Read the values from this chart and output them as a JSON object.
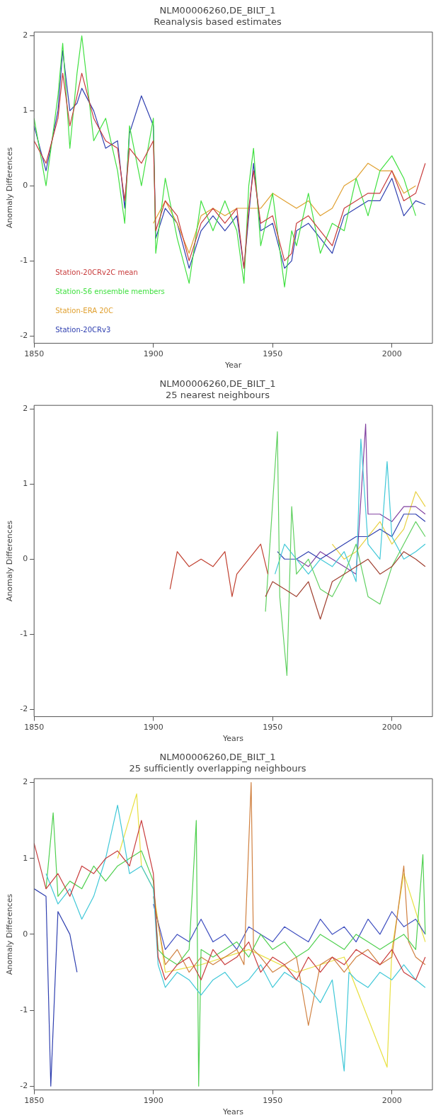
{
  "chart_data": [
    {
      "type": "line",
      "title": "NLM00006260,DE_BILT_1",
      "subtitle": "Reanalysis based estimates",
      "xlabel": "Year",
      "ylabel": "Anomaly Differences",
      "xlim": [
        1850,
        2017
      ],
      "xticks": [
        1850,
        1900,
        1950,
        2000
      ],
      "ylim": [
        -2.1,
        2.05
      ],
      "yticks": [
        -2,
        -1,
        0,
        1,
        2
      ],
      "legend": "bottom left",
      "series": [
        {
          "name": "Station-20CRv2C mean",
          "color": "#c83c3c",
          "x": [
            1850,
            1855,
            1860,
            1862,
            1865,
            1868,
            1870,
            1875,
            1880,
            1885,
            1888,
            1890,
            1895,
            1900,
            1901,
            1905,
            1910,
            1915,
            1920,
            1925,
            1930,
            1935,
            1938,
            1940,
            1942,
            1945,
            1950,
            1955,
            1958,
            1960,
            1965,
            1970,
            1975,
            1980,
            1985,
            1990,
            1995,
            2000,
            2005,
            2010,
            2014
          ],
          "values": [
            0.6,
            0.3,
            0.9,
            1.5,
            0.8,
            1.2,
            1.5,
            0.9,
            0.6,
            0.5,
            -0.2,
            0.5,
            0.3,
            0.6,
            -0.6,
            -0.2,
            -0.4,
            -1.0,
            -0.5,
            -0.3,
            -0.5,
            -0.3,
            -1.1,
            -0.3,
            0.2,
            -0.5,
            -0.4,
            -1.0,
            -0.9,
            -0.5,
            -0.4,
            -0.6,
            -0.8,
            -0.3,
            -0.2,
            -0.1,
            -0.1,
            0.2,
            -0.2,
            -0.1,
            0.3
          ]
        },
        {
          "name": "Station-56 ensemble members",
          "color": "#40e040",
          "x": [
            1850,
            1855,
            1860,
            1862,
            1865,
            1868,
            1870,
            1875,
            1880,
            1885,
            1888,
            1890,
            1895,
            1900,
            1901,
            1905,
            1910,
            1915,
            1920,
            1925,
            1930,
            1935,
            1938,
            1940,
            1942,
            1945,
            1950,
            1955,
            1958,
            1960,
            1965,
            1970,
            1975,
            1980,
            1985,
            1990,
            1995,
            2000,
            2005,
            2010
          ],
          "values": [
            0.9,
            0.0,
            1.2,
            1.9,
            0.5,
            1.5,
            2.0,
            0.6,
            0.9,
            0.2,
            -0.5,
            0.8,
            0.0,
            0.9,
            -0.9,
            0.1,
            -0.7,
            -1.3,
            -0.2,
            -0.6,
            -0.2,
            -0.6,
            -1.3,
            0.0,
            0.5,
            -0.8,
            -0.1,
            -1.35,
            -0.6,
            -0.8,
            -0.1,
            -0.9,
            -0.5,
            -0.6,
            0.1,
            -0.4,
            0.2,
            0.4,
            0.1,
            -0.4
          ]
        },
        {
          "name": "Station-ERA 20C",
          "color": "#e0a030",
          "x": [
            1900,
            1905,
            1910,
            1915,
            1920,
            1925,
            1930,
            1935,
            1940,
            1945,
            1950,
            1955,
            1960,
            1965,
            1970,
            1975,
            1980,
            1985,
            1990,
            1995,
            2000,
            2005,
            2010
          ],
          "values": [
            -0.5,
            -0.2,
            -0.5,
            -0.9,
            -0.4,
            -0.3,
            -0.4,
            -0.3,
            -0.3,
            -0.3,
            -0.1,
            -0.2,
            -0.3,
            -0.2,
            -0.4,
            -0.3,
            0.0,
            0.1,
            0.3,
            0.2,
            0.2,
            -0.1,
            0.0
          ]
        },
        {
          "name": "Station-20CRv3",
          "color": "#3040b0",
          "x": [
            1850,
            1855,
            1860,
            1862,
            1865,
            1868,
            1870,
            1875,
            1880,
            1885,
            1888,
            1890,
            1895,
            1900,
            1901,
            1905,
            1910,
            1915,
            1920,
            1925,
            1930,
            1935,
            1938,
            1940,
            1942,
            1945,
            1950,
            1955,
            1958,
            1960,
            1965,
            1970,
            1975,
            1980,
            1985,
            1990,
            1995,
            2000,
            2005,
            2010,
            2014
          ],
          "values": [
            0.8,
            0.2,
            1.0,
            1.8,
            1.0,
            1.1,
            1.3,
            1.0,
            0.5,
            0.6,
            -0.3,
            0.7,
            1.2,
            0.8,
            -0.7,
            -0.3,
            -0.5,
            -1.1,
            -0.6,
            -0.4,
            -0.6,
            -0.4,
            -1.1,
            -0.4,
            0.3,
            -0.6,
            -0.5,
            -1.1,
            -1.0,
            -0.6,
            -0.5,
            -0.7,
            -0.9,
            -0.4,
            -0.3,
            -0.2,
            -0.2,
            0.1,
            -0.4,
            -0.2,
            -0.25
          ]
        }
      ]
    },
    {
      "type": "line",
      "title": "NLM00006260,DE_BILT_1",
      "subtitle": "25 nearest neighbours",
      "xlabel": "Years",
      "ylabel": "Anomaly Differences",
      "xlim": [
        1850,
        2017
      ],
      "xticks": [
        1850,
        1900,
        1950,
        2000
      ],
      "ylim": [
        -2.1,
        2.05
      ],
      "yticks": [
        -2,
        -1,
        0,
        1,
        2
      ],
      "series": [
        {
          "color": "#c04030",
          "x": [
            1907,
            1910,
            1915,
            1920,
            1925,
            1930,
            1933,
            1935,
            1940,
            1945,
            1948
          ],
          "values": [
            -0.4,
            0.1,
            -0.1,
            0.0,
            -0.1,
            0.1,
            -0.5,
            -0.2,
            0.0,
            0.2,
            -0.2
          ]
        },
        {
          "color": "#a04030",
          "x": [
            1947,
            1950,
            1955,
            1960,
            1965,
            1970,
            1975,
            1980,
            1985,
            1990,
            1995,
            2000,
            2005,
            2010,
            2014
          ],
          "values": [
            -0.5,
            -0.3,
            -0.4,
            -0.5,
            -0.3,
            -0.8,
            -0.3,
            -0.2,
            -0.1,
            0.0,
            -0.2,
            -0.1,
            0.1,
            0.0,
            -0.1
          ]
        },
        {
          "color": "#60d060",
          "x": [
            1947,
            1952,
            1953,
            1956,
            1958,
            1960,
            1965,
            1970,
            1975,
            1980,
            1985,
            1990,
            1995,
            2000,
            2005,
            2010,
            2014
          ],
          "values": [
            -0.7,
            1.7,
            -0.5,
            -1.55,
            0.7,
            -0.2,
            0.0,
            -0.4,
            -0.5,
            -0.2,
            0.2,
            -0.5,
            -0.6,
            -0.1,
            0.2,
            0.5,
            0.3
          ]
        },
        {
          "color": "#40c8d8",
          "x": [
            1951,
            1955,
            1960,
            1965,
            1970,
            1975,
            1980,
            1985,
            1987,
            1990,
            1995,
            1998,
            2000,
            2005,
            2010,
            2014
          ],
          "values": [
            -0.2,
            0.2,
            0.0,
            -0.2,
            0.0,
            -0.1,
            0.1,
            -0.3,
            1.6,
            0.2,
            0.0,
            1.3,
            0.3,
            0.0,
            0.1,
            0.2
          ]
        },
        {
          "color": "#3040b0",
          "x": [
            1952,
            1955,
            1960,
            1965,
            1970,
            1975,
            1980,
            1985,
            1990,
            1995,
            2000,
            2005,
            2010,
            2014
          ],
          "values": [
            0.1,
            0.0,
            0.0,
            0.1,
            0.0,
            0.1,
            0.2,
            0.3,
            0.3,
            0.4,
            0.3,
            0.6,
            0.6,
            0.5
          ]
        },
        {
          "color": "#8040a0",
          "x": [
            1960,
            1965,
            1970,
            1975,
            1980,
            1985,
            1989,
            1990,
            1995,
            2000,
            2005,
            2010,
            2014
          ],
          "values": [
            0.0,
            -0.1,
            0.1,
            0.0,
            -0.1,
            -0.2,
            1.8,
            0.6,
            0.6,
            0.5,
            0.7,
            0.7,
            0.6
          ]
        },
        {
          "color": "#e8d040",
          "x": [
            1975,
            1980,
            1985,
            1990,
            1995,
            2000,
            2005,
            2010,
            2014
          ],
          "values": [
            0.2,
            0.0,
            0.1,
            0.3,
            0.5,
            0.2,
            0.4,
            0.9,
            0.7
          ]
        }
      ]
    },
    {
      "type": "line",
      "title": "NLM00006260,DE_BILT_1",
      "subtitle": "25 sufficiently overlapping neighbours",
      "xlabel": "Years",
      "ylabel": "Anomaly Differences",
      "xlim": [
        1850,
        2017
      ],
      "xticks": [
        1850,
        1900,
        1950,
        2000
      ],
      "ylim": [
        -2.05,
        2.05
      ],
      "yticks": [
        -2,
        -1,
        0,
        1,
        2
      ],
      "series": [
        {
          "color": "#c83c3c",
          "x": [
            1850,
            1855,
            1860,
            1865,
            1870,
            1875,
            1880,
            1885,
            1890,
            1895,
            1900,
            1902,
            1905,
            1910,
            1915,
            1920,
            1925,
            1930,
            1935,
            1940,
            1945,
            1950,
            1955,
            1960,
            1965,
            1970,
            1975,
            1980,
            1985,
            1990,
            1995,
            2000,
            2005,
            2010,
            2014
          ],
          "values": [
            1.2,
            0.6,
            0.8,
            0.5,
            0.9,
            0.8,
            1.0,
            1.1,
            0.9,
            1.5,
            0.8,
            -0.3,
            -0.6,
            -0.4,
            -0.3,
            -0.6,
            -0.2,
            -0.4,
            -0.3,
            -0.1,
            -0.5,
            -0.3,
            -0.4,
            -0.6,
            -0.3,
            -0.5,
            -0.3,
            -0.4,
            -0.2,
            -0.3,
            -0.4,
            -0.2,
            -0.5,
            -0.6,
            -0.3
          ]
        },
        {
          "color": "#3040b0",
          "x": [
            1850,
            1855,
            1857,
            1860,
            1865,
            1868
          ],
          "values": [
            0.6,
            0.5,
            -2.0,
            0.3,
            0.0,
            -0.5
          ]
        },
        {
          "color": "#40c8d8",
          "x": [
            1855,
            1860,
            1865,
            1870,
            1875,
            1880,
            1885,
            1890,
            1895,
            1900,
            1902,
            1905,
            1910,
            1915,
            1920,
            1925,
            1930,
            1935,
            1940,
            1945,
            1950,
            1955,
            1960,
            1965,
            1970,
            1975,
            1980,
            1982,
            1985,
            1990,
            1995,
            2000,
            2005,
            2010,
            2014
          ],
          "values": [
            0.8,
            0.4,
            0.6,
            0.2,
            0.5,
            1.0,
            1.7,
            0.8,
            0.9,
            0.6,
            -0.4,
            -0.7,
            -0.5,
            -0.6,
            -0.8,
            -0.6,
            -0.5,
            -0.7,
            -0.6,
            -0.4,
            -0.7,
            -0.5,
            -0.6,
            -0.7,
            -0.9,
            -0.6,
            -1.8,
            -0.5,
            -0.6,
            -0.7,
            -0.5,
            -0.6,
            -0.4,
            -0.6,
            -0.7
          ]
        },
        {
          "color": "#50d050",
          "x": [
            1855,
            1858,
            1860,
            1865,
            1870,
            1875,
            1880,
            1885,
            1890,
            1895,
            1900,
            1902,
            1905,
            1910,
            1915,
            1918,
            1919,
            1920,
            1925,
            1930,
            1935,
            1940,
            1945,
            1950,
            1955,
            1960,
            1965,
            1970,
            1975,
            1980,
            1985,
            1990,
            1995,
            2000,
            2005,
            2010,
            2013,
            2014
          ],
          "values": [
            0.6,
            1.6,
            0.5,
            0.7,
            0.6,
            0.9,
            0.7,
            0.9,
            1.0,
            1.1,
            0.7,
            -0.2,
            -0.3,
            -0.4,
            -0.2,
            1.5,
            -2.0,
            -0.2,
            -0.3,
            -0.2,
            -0.1,
            -0.3,
            0.0,
            -0.2,
            -0.1,
            -0.3,
            -0.2,
            0.0,
            -0.1,
            -0.2,
            0.0,
            -0.1,
            -0.2,
            -0.1,
            0.0,
            -0.2,
            1.05,
            0.0
          ]
        },
        {
          "color": "#d08040",
          "x": [
            1900,
            1905,
            1910,
            1915,
            1920,
            1925,
            1930,
            1935,
            1938,
            1941,
            1942,
            1945,
            1950,
            1955,
            1960,
            1965,
            1970,
            1975,
            1980,
            1985,
            1990,
            1995,
            2000,
            2005,
            2007,
            2010,
            2014
          ],
          "values": [
            0.5,
            -0.4,
            -0.2,
            -0.5,
            -0.3,
            -0.4,
            -0.3,
            -0.2,
            -0.4,
            2.0,
            -0.2,
            -0.3,
            -0.5,
            -0.4,
            -0.3,
            -1.2,
            -0.4,
            -0.3,
            -0.5,
            -0.3,
            -0.2,
            -0.4,
            -0.3,
            0.9,
            -0.1,
            -0.3,
            -0.4
          ]
        },
        {
          "color": "#4050c0",
          "x": [
            1900,
            1905,
            1910,
            1915,
            1920,
            1925,
            1930,
            1935,
            1940,
            1945,
            1950,
            1955,
            1960,
            1965,
            1970,
            1975,
            1980,
            1985,
            1990,
            1995,
            2000,
            2005,
            2010,
            2014
          ],
          "values": [
            0.4,
            -0.2,
            0.0,
            -0.1,
            0.2,
            -0.1,
            0.0,
            -0.2,
            0.1,
            0.0,
            -0.1,
            0.1,
            0.0,
            -0.1,
            0.2,
            0.0,
            0.1,
            -0.1,
            0.2,
            0.0,
            0.3,
            0.1,
            0.2,
            0.0
          ]
        },
        {
          "color": "#e8e040",
          "x": [
            1885,
            1893,
            1895,
            1900,
            1905,
            1920,
            1940,
            1960,
            1980,
            1998,
            2000,
            2005,
            2014
          ],
          "values": [
            1.0,
            1.85,
            0.9,
            0.6,
            -0.5,
            -0.4,
            -0.2,
            -0.5,
            -0.3,
            -1.75,
            -0.2,
            0.8,
            -0.1
          ]
        }
      ]
    }
  ]
}
